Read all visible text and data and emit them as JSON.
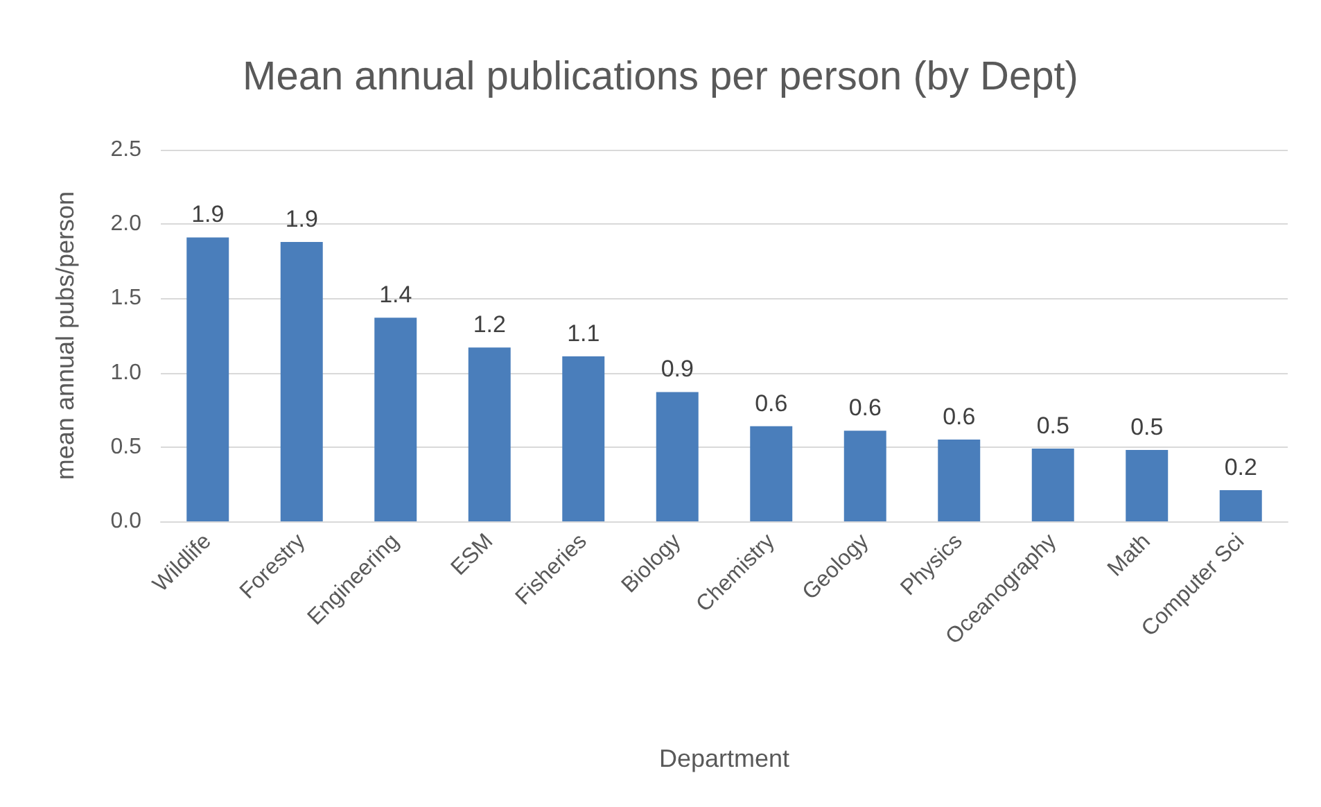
{
  "chart_data": {
    "type": "bar",
    "title": "Mean annual publications per person (by Dept)",
    "xlabel": "Department",
    "ylabel": "mean annual pubs/person",
    "categories": [
      "Wildlife",
      "Forestry",
      "Engineering",
      "ESM",
      "Fisheries",
      "Biology",
      "Chemistry",
      "Geology",
      "Physics",
      "Oceanography",
      "Math",
      "Computer Sci"
    ],
    "values": [
      1.91,
      1.88,
      1.37,
      1.17,
      1.11,
      0.87,
      0.64,
      0.61,
      0.55,
      0.49,
      0.48,
      0.21
    ],
    "value_labels": [
      "1.9",
      "1.9",
      "1.4",
      "1.2",
      "1.1",
      "0.9",
      "0.6",
      "0.6",
      "0.6",
      "0.5",
      "0.5",
      "0.2"
    ],
    "color": "#4a7ebb",
    "ylim": [
      0,
      2.5
    ],
    "yticks": [
      {
        "value": 0,
        "label": "0.0"
      },
      {
        "value": 0.5,
        "label": "0.5"
      },
      {
        "value": 1,
        "label": "1.0"
      },
      {
        "value": 1.5,
        "label": "1.5"
      },
      {
        "value": 2,
        "label": "2.0"
      },
      {
        "value": 2.5,
        "label": "2.5"
      }
    ],
    "grid": "y"
  }
}
